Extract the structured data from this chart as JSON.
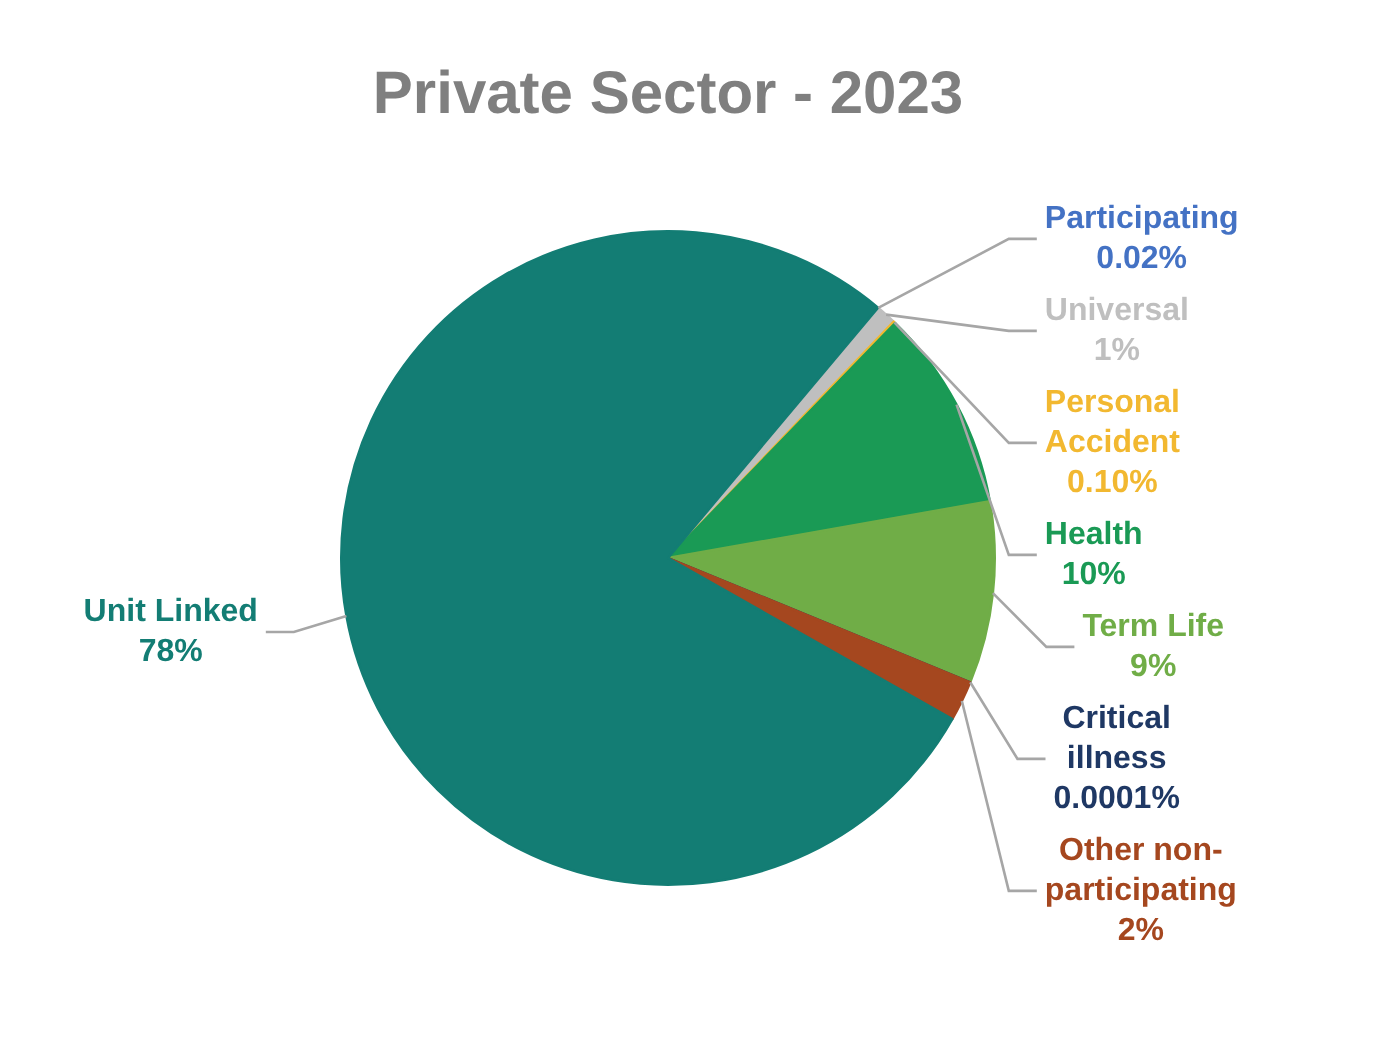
{
  "chart_data": {
    "type": "pie",
    "title": "Private Sector - 2023",
    "categories": [
      "Participating",
      "Universal",
      "Personal Accident",
      "Health",
      "Term Life",
      "Critical illness",
      "Other non-participating",
      "Unit Linked"
    ],
    "values": [
      0.02,
      1,
      0.1,
      10,
      9,
      0.0001,
      2,
      78
    ],
    "value_labels": [
      "0.02%",
      "1%",
      "0.10%",
      "10%",
      "9%",
      "0.0001%",
      "2%",
      "78%"
    ],
    "colors": [
      "#4472c4",
      "#bfbfbf",
      "#f2b830",
      "#1a9a55",
      "#70ad47",
      "#1f3864",
      "#a5471f",
      "#137d74"
    ],
    "legend": false
  }
}
